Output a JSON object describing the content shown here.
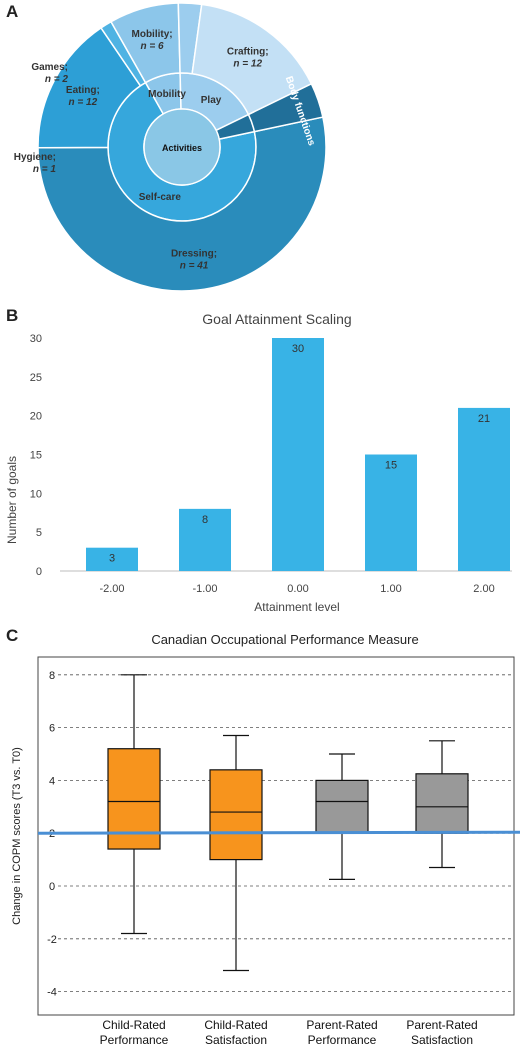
{
  "panels": {
    "a": "A",
    "b": "B",
    "c": "C"
  },
  "chart_data": [
    {
      "type": "pie",
      "subtype": "sunburst",
      "center_label": "Activities",
      "inner_ring": [
        {
          "label": "Self-care",
          "value": 54
        },
        {
          "label": "Mobility",
          "value": 6
        },
        {
          "label": "Play",
          "value": 14
        },
        {
          "label": "Body functions",
          "value": 3
        }
      ],
      "outer_ring": [
        {
          "name": "Dressing;",
          "n": "n = 41",
          "value": 41,
          "group": "Self-care"
        },
        {
          "name": "Eating;",
          "n": "n = 12",
          "value": 12,
          "group": "Self-care"
        },
        {
          "name": "Hygiene;",
          "n": "n = 1",
          "value": 1,
          "group": "Self-care"
        },
        {
          "name": "Mobility;",
          "n": "n = 6",
          "value": 6,
          "group": "Mobility"
        },
        {
          "name": "Games;",
          "n": "n = 2",
          "value": 2,
          "group": "Play"
        },
        {
          "name": "Crafting;",
          "n": "n = 12",
          "value": 12,
          "group": "Play"
        },
        {
          "name": "Body functions",
          "n": "",
          "value": 3,
          "group": "Body functions"
        }
      ],
      "colors": {
        "center": "#8ac7e6",
        "self_care": "#36a7dc",
        "dressing": "#2a8cbb",
        "eating": "#2d9fd6",
        "hygiene": "#4fb3e3",
        "mobility": "#8cc6ea",
        "games": "#9ccdee",
        "crafting": "#c3e0f5",
        "body": "#216f99"
      }
    },
    {
      "type": "bar",
      "title": "Goal Attainment Scaling",
      "xlabel": "Attainment level",
      "ylabel": "Number of goals",
      "categories": [
        "-2.00",
        "-1.00",
        "0.00",
        "1.00",
        "2.00"
      ],
      "values": [
        3,
        8,
        30,
        15,
        21
      ],
      "ylim": [
        0,
        30
      ],
      "yticks": [
        "0",
        "5",
        "10",
        "15",
        "20",
        "25",
        "30"
      ],
      "grid": false,
      "color": "#38b3e6"
    },
    {
      "type": "box",
      "title": "Canadian Occupational Performance Measure",
      "ylabel": "Change in COPM scores (T3 vs. T0)",
      "ylim": [
        -4.5,
        9
      ],
      "yticks": [
        "-4",
        "-2",
        "0",
        "2",
        "4",
        "6",
        "8"
      ],
      "reference_line": 2,
      "reference_color": "#4a8fd4",
      "grid": "dashed",
      "boxes": [
        {
          "line1": "Child-Rated",
          "line2": "Performance",
          "min": -1.8,
          "q1": 1.4,
          "median": 3.2,
          "q3": 5.2,
          "max": 8.0,
          "color": "#f7941d"
        },
        {
          "line1": "Child-Rated",
          "line2": "Satisfaction",
          "min": -3.2,
          "q1": 1.0,
          "median": 2.8,
          "q3": 4.4,
          "max": 5.7,
          "color": "#f7941d"
        },
        {
          "line1": "Parent-Rated",
          "line2": "Performance",
          "min": 0.25,
          "q1": 2.0,
          "median": 3.2,
          "q3": 4.0,
          "max": 5.0,
          "color": "#999999"
        },
        {
          "line1": "Parent-Rated",
          "line2": "Satisfaction",
          "min": 0.7,
          "q1": 2.0,
          "median": 3.0,
          "q3": 4.25,
          "max": 5.5,
          "color": "#999999"
        }
      ]
    }
  ]
}
